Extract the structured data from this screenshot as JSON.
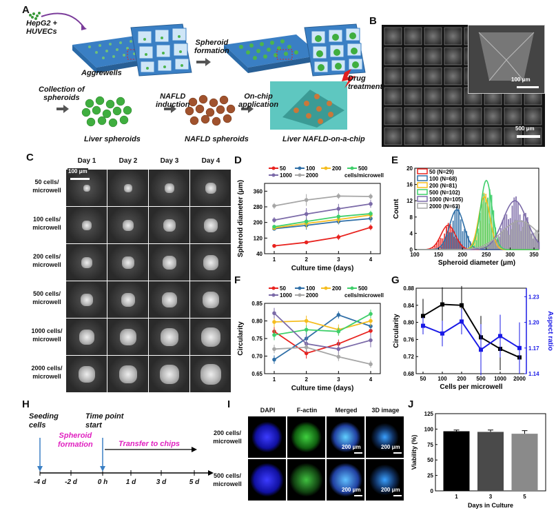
{
  "panels": {
    "A": "A",
    "B": "B",
    "C": "C",
    "D": "D",
    "E": "E",
    "F": "F",
    "G": "G",
    "H": "H",
    "I": "I",
    "J": "J"
  },
  "panelA": {
    "hepg2": "HepG2 +",
    "huvecs": "HUVECs",
    "aggrewells": "Aggrewells",
    "spheroid_formation_1": "Spheroid",
    "spheroid_formation_2": "formation",
    "collection_1": "Collection of",
    "collection_2": "spheroids",
    "nafld_ind_1": "NAFLD",
    "nafld_ind_2": "induction",
    "onchip_1": "On-chip",
    "onchip_2": "application",
    "drug_1": "Drug",
    "drug_2": "treatment",
    "liver_spheroids": "Liver spheroids",
    "nafld_spheroids": "NAFLD spheroids",
    "liver_chip": "Liver NAFLD-on-a-chip"
  },
  "panelB": {
    "scale_inset": "100 μm",
    "scale_main": "500 μm"
  },
  "panelC": {
    "days": [
      "Day 1",
      "Day 2",
      "Day 3",
      "Day 4"
    ],
    "rows": [
      "50 cells/\nmicrowell",
      "100 cells/\nmicrowell",
      "200 cells/\nmicrowell",
      "500 cells/\nmicrowell",
      "1000 cells/\nmicrowell",
      "2000 cells/\nmicrowell"
    ],
    "row_lines": [
      [
        "50 cells/",
        "microwell"
      ],
      [
        "100 cells/",
        "microwell"
      ],
      [
        "200 cells/",
        "microwell"
      ],
      [
        "500 cells/",
        "microwell"
      ],
      [
        "1000 cells/",
        "microwell"
      ],
      [
        "2000 cells/",
        "microwell"
      ]
    ],
    "scale": "100 μm"
  },
  "panelH": {
    "seeding_1": "Seeding",
    "seeding_2": "cells",
    "spheroid_1": "Spheroid",
    "spheroid_2": "formation",
    "timepoint_1": "Time point",
    "timepoint_2": "start",
    "transfer": "Transfer to chips",
    "ticks": [
      "-4 d",
      "-2 d",
      "0 h",
      "1 d",
      "3 d",
      "5 d"
    ]
  },
  "panelI": {
    "cols": [
      "DAPI",
      "F-actin",
      "Merged",
      "3D image"
    ],
    "rows": [
      [
        "200 cells/",
        "microwell"
      ],
      [
        "500 cells/",
        "microwell"
      ]
    ],
    "scale": "200 μm"
  },
  "colors": {
    "s50": "#e8231f",
    "s100": "#2f6fa7",
    "s200": "#f5bd1f",
    "s500": "#3fcf6a",
    "s1000": "#7b6aa8",
    "s2000": "#a6a6a6",
    "aspect_blue": "#1a1ae6"
  },
  "chart_data": [
    {
      "id": "D",
      "type": "line",
      "xlabel": "Culture time (days)",
      "ylabel": "Spheroid diameter (μm)",
      "x": [
        1,
        2,
        3,
        4
      ],
      "xlim": [
        0.7,
        4.3
      ],
      "ylim": [
        40,
        400
      ],
      "yticks": [
        40,
        120,
        200,
        280,
        360
      ],
      "yticks2": [
        80,
        160,
        240,
        320,
        400
      ],
      "legend_suffix": "cells/microwell",
      "series": [
        {
          "name": "50",
          "values": [
            80,
            98,
            125,
            175
          ],
          "err": [
            6,
            8,
            15,
            15
          ]
        },
        {
          "name": "100",
          "values": [
            168,
            185,
            205,
            220
          ],
          "err": [
            10,
            22,
            15,
            20
          ]
        },
        {
          "name": "200",
          "values": [
            172,
            195,
            215,
            238
          ],
          "err": [
            10,
            25,
            20,
            20
          ]
        },
        {
          "name": "500",
          "values": [
            178,
            205,
            230,
            245
          ],
          "err": [
            10,
            18,
            18,
            15
          ]
        },
        {
          "name": "1000",
          "values": [
            212,
            243,
            270,
            295
          ],
          "err": [
            15,
            30,
            25,
            20
          ]
        },
        {
          "name": "2000",
          "values": [
            285,
            315,
            335,
            333
          ],
          "err": [
            15,
            30,
            15,
            15
          ]
        }
      ]
    },
    {
      "id": "E",
      "type": "bar",
      "xlabel": "Spheroid diameter (μm)",
      "ylabel": "Count",
      "xlim": [
        100,
        360
      ],
      "xticks": [
        100,
        150,
        200,
        250,
        300,
        350
      ],
      "ylim": [
        0,
        20
      ],
      "yticks": [
        0,
        4,
        8,
        12,
        16,
        20
      ],
      "series": [
        {
          "name": "50 (N=29)",
          "mean": 170,
          "sd": 15,
          "peak": 6
        },
        {
          "name": "100 (N=68)",
          "mean": 188,
          "sd": 15,
          "peak": 9.8
        },
        {
          "name": "200 (N=81)",
          "mean": 246,
          "sd": 12,
          "peak": 13
        },
        {
          "name": "500 (N=102)",
          "mean": 250,
          "sd": 12,
          "peak": 17
        },
        {
          "name": "1000 (N=105)",
          "mean": 310,
          "sd": 25,
          "peak": 12
        },
        {
          "name": "2000 (N=63)",
          "mean": 320,
          "sd": 38,
          "peak": 7
        }
      ]
    },
    {
      "id": "F",
      "type": "line",
      "xlabel": "Culture time (days)",
      "ylabel": "Circularity",
      "x": [
        1,
        2,
        3,
        4
      ],
      "xlim": [
        0.7,
        4.3
      ],
      "ylim": [
        0.65,
        0.85
      ],
      "yticks": [
        0.65,
        0.7,
        0.75,
        0.8,
        0.85
      ],
      "legend_suffix": "cells/microwell",
      "series": [
        {
          "name": "50",
          "values": [
            0.77,
            0.708,
            0.735,
            0.772
          ],
          "err": [
            0.015,
            0.015,
            0.012,
            0.015
          ]
        },
        {
          "name": "100",
          "values": [
            0.69,
            0.75,
            0.817,
            0.785
          ],
          "err": [
            0.012,
            0.02,
            0.01,
            0.012
          ]
        },
        {
          "name": "200",
          "values": [
            0.797,
            0.8,
            0.775,
            0.8
          ],
          "err": [
            0.015,
            0.015,
            0.015,
            0.015
          ]
        },
        {
          "name": "500",
          "values": [
            0.76,
            0.775,
            0.77,
            0.82
          ],
          "err": [
            0.015,
            0.012,
            0.012,
            0.012
          ]
        },
        {
          "name": "1000",
          "values": [
            0.822,
            0.735,
            0.72,
            0.745
          ],
          "err": [
            0.015,
            0.025,
            0.02,
            0.02
          ]
        },
        {
          "name": "2000",
          "values": [
            0.72,
            0.725,
            0.698,
            0.677
          ],
          "err": [
            0.012,
            0.012,
            0.012,
            0.01
          ]
        }
      ]
    },
    {
      "id": "G",
      "type": "line",
      "xlabel": "Cells per microwell",
      "ylabel": "Circularity",
      "ylabel_right": "Aspect ratio",
      "categories": [
        "50",
        "100",
        "200",
        "500",
        "1000",
        "2000"
      ],
      "ylim": [
        0.68,
        0.88
      ],
      "yticks": [
        0.68,
        0.72,
        0.76,
        0.8,
        0.84,
        0.88
      ],
      "ylim_right": [
        1.14,
        1.24
      ],
      "yticks_right": [
        1.14,
        1.17,
        1.2,
        1.23
      ],
      "series": [
        {
          "name": "Circularity",
          "values": [
            0.815,
            0.842,
            0.84,
            0.765,
            0.738,
            0.718
          ],
          "err": [
            0.04,
            0.04,
            0.045,
            0.05,
            0.05,
            0.03
          ]
        },
        {
          "name": "Aspect ratio",
          "axis": "right",
          "values": [
            1.196,
            1.187,
            1.201,
            1.168,
            1.184,
            1.17
          ],
          "err": [
            0.01,
            0.015,
            0.015,
            0.03,
            0.025,
            0.03
          ]
        }
      ]
    },
    {
      "id": "J",
      "type": "bar",
      "xlabel": "Days in Culture",
      "ylabel": "Viability (%)",
      "categories": [
        "1",
        "3",
        "5"
      ],
      "values": [
        96.5,
        95.5,
        92.5
      ],
      "err": [
        2,
        3,
        5
      ],
      "ylim": [
        0,
        125
      ],
      "yticks": [
        0,
        25,
        50,
        75,
        100,
        125
      ],
      "bar_colors": [
        "#000000",
        "#4a4a4a",
        "#8a8a8a"
      ]
    }
  ]
}
